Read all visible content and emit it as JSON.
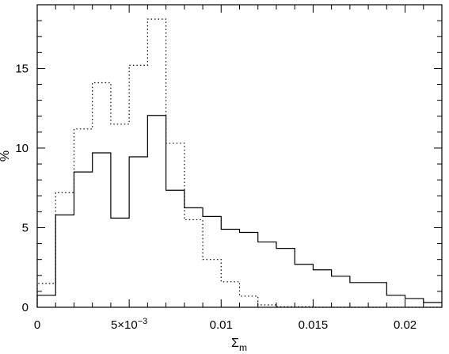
{
  "chart_data": {
    "type": "histogram",
    "xlabel": "Σ",
    "xlabel_sub": "m",
    "ylabel": "%",
    "xlim": [
      0,
      0.022
    ],
    "ylim": [
      0,
      19
    ],
    "x_ticks": [
      {
        "value": 0,
        "label": "0"
      },
      {
        "value": 0.005,
        "label": "5×10"
      },
      {
        "value": 0.01,
        "label": "0.01"
      },
      {
        "value": 0.015,
        "label": "0.015"
      },
      {
        "value": 0.02,
        "label": "0.02"
      }
    ],
    "x_tick_exponent": "−3",
    "y_ticks": [
      {
        "value": 0,
        "label": "0"
      },
      {
        "value": 5,
        "label": "5"
      },
      {
        "value": 10,
        "label": "10"
      },
      {
        "value": 15,
        "label": "15"
      }
    ],
    "bin_edges": [
      0,
      0.001,
      0.002,
      0.003,
      0.004,
      0.005,
      0.006,
      0.007,
      0.008,
      0.009,
      0.01,
      0.011,
      0.012,
      0.013,
      0.014,
      0.015,
      0.016,
      0.017,
      0.018,
      0.019,
      0.02,
      0.021,
      0.022
    ],
    "series": [
      {
        "style": "solid",
        "values": [
          0.75,
          5.8,
          8.5,
          9.7,
          5.6,
          9.45,
          12.05,
          7.35,
          6.25,
          5.7,
          4.9,
          4.7,
          4.1,
          3.7,
          2.7,
          2.35,
          1.95,
          1.55,
          1.55,
          0.75,
          0.55,
          0.3
        ]
      },
      {
        "style": "dotted",
        "values": [
          1.5,
          7.2,
          11.2,
          14.1,
          11.5,
          15.2,
          18.1,
          10.3,
          5.5,
          3.0,
          1.6,
          0.7,
          0.15,
          0.03,
          0.03,
          0,
          0,
          0,
          0,
          0,
          0,
          0
        ]
      }
    ],
    "grid": false,
    "legend": "none"
  }
}
